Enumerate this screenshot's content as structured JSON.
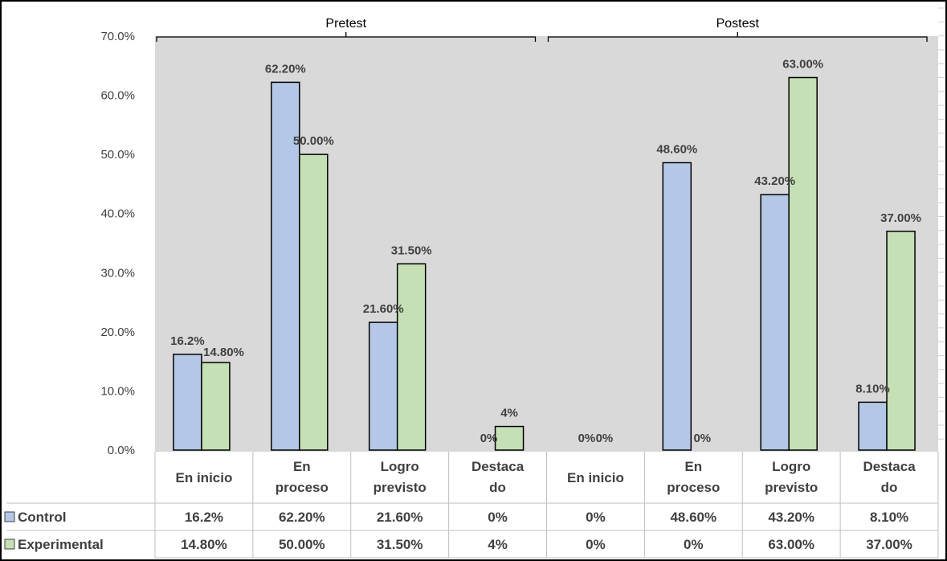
{
  "chart_data": {
    "type": "bar",
    "groups": [
      {
        "label": "Pretest",
        "categories": [
          0,
          1,
          2,
          3
        ]
      },
      {
        "label": "Postest",
        "categories": [
          4,
          5,
          6,
          7
        ]
      }
    ],
    "categories": [
      [
        "En inicio"
      ],
      [
        "En",
        "proceso"
      ],
      [
        "Logro",
        "previsto"
      ],
      [
        "Destaca",
        "do"
      ],
      [
        "En inicio"
      ],
      [
        "En",
        "proceso"
      ],
      [
        "Logro",
        "previsto"
      ],
      [
        "Destaca",
        "do"
      ]
    ],
    "series": [
      {
        "name": "Control",
        "color": "#b4c7e7",
        "values": [
          16.2,
          62.2,
          21.6,
          0,
          0,
          48.6,
          43.2,
          8.1
        ],
        "labels": [
          "16.2%",
          "62.20%",
          "21.60%",
          "0%",
          "0%",
          "48.60%",
          "43.20%",
          "8.10%"
        ]
      },
      {
        "name": "Experimental",
        "color": "#c5e0b4",
        "values": [
          14.8,
          50.0,
          31.5,
          4,
          0,
          0,
          63.0,
          37.0
        ],
        "labels": [
          "14.80%",
          "50.00%",
          "31.50%",
          "4%",
          "0%",
          "0%",
          "63.00%",
          "37.00%"
        ]
      }
    ],
    "yticks": [
      "0.0%",
      "10.0%",
      "20.0%",
      "30.0%",
      "40.0%",
      "50.0%",
      "60.0%",
      "70.0%"
    ],
    "ylim": [
      0,
      70
    ],
    "plot_background": "#d9d9d9",
    "grid": false,
    "legend": "data-table"
  }
}
